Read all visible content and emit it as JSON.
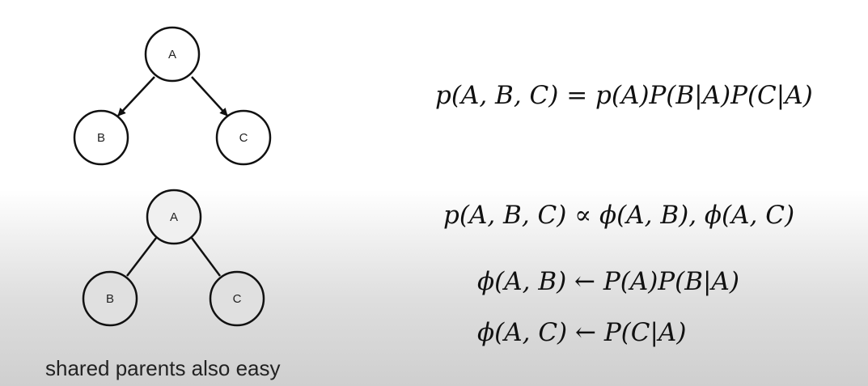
{
  "directed_graph": {
    "nodes": [
      {
        "id": "A",
        "label": "A"
      },
      {
        "id": "B",
        "label": "B"
      },
      {
        "id": "C",
        "label": "C"
      }
    ],
    "edges": [
      {
        "from": "A",
        "to": "B",
        "directed": true
      },
      {
        "from": "A",
        "to": "C",
        "directed": true
      }
    ]
  },
  "undirected_graph": {
    "nodes": [
      {
        "id": "A",
        "label": "A"
      },
      {
        "id": "B",
        "label": "B"
      },
      {
        "id": "C",
        "label": "C"
      }
    ],
    "edges": [
      {
        "from": "A",
        "to": "B",
        "directed": false
      },
      {
        "from": "A",
        "to": "C",
        "directed": false
      }
    ]
  },
  "equations": {
    "directed": "p(A, B, C) = p(A)P(B|A)P(C|A)",
    "factor": "p(A, B, C) ∝ ϕ(A, B), ϕ(A, C)",
    "phi_ab": "ϕ(A, B) ← P(A)P(B|A)",
    "phi_ac": "ϕ(A, C) ← P(C|A)"
  },
  "caption": "shared parents also easy"
}
